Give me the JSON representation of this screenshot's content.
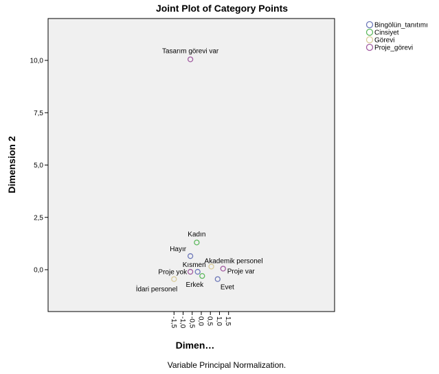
{
  "chart_data": {
    "type": "scatter",
    "title": "Joint Plot of Category Points",
    "xlabel": "Dimen…",
    "ylabel": "Dimension 2",
    "footnote": "Variable Principal Normalization.",
    "xlim": [
      -1.7,
      1.7
    ],
    "ylim": [
      -1.0,
      12.0
    ],
    "x_ticks": [
      "-1,5",
      "-1,0",
      "-0,5",
      "0,0",
      "0,5",
      "1,0",
      "1,5"
    ],
    "x_tick_values": [
      -1.5,
      -1.0,
      -0.5,
      0.0,
      0.5,
      1.0,
      1.5
    ],
    "y_ticks": [
      "0,0",
      "2,5",
      "5,0",
      "7,5",
      "10,0"
    ],
    "y_tick_values": [
      0.0,
      2.5,
      5.0,
      7.5,
      10.0
    ],
    "grid": false,
    "legend_position": "top-right",
    "series": [
      {
        "name": "Bingölün_tanıtımı",
        "color": "#6b77b8",
        "points": [
          {
            "label": "Hayır",
            "x": -0.6,
            "y": 0.65
          },
          {
            "label": "Kısmen",
            "x": -0.2,
            "y": -0.1
          },
          {
            "label": "Evet",
            "x": 0.9,
            "y": -0.45
          }
        ]
      },
      {
        "name": "Cinsiyet",
        "color": "#5cb85c",
        "points": [
          {
            "label": "Kadın",
            "x": -0.25,
            "y": 1.3
          },
          {
            "label": "Erkek",
            "x": 0.05,
            "y": -0.3
          }
        ]
      },
      {
        "name": "Görevi",
        "color": "#d8cc9a",
        "points": [
          {
            "label": "Akademik personel",
            "x": 0.55,
            "y": 0.15
          },
          {
            "label": "İdari personel",
            "x": -1.5,
            "y": -0.45
          }
        ]
      },
      {
        "name": "Proje_görevi",
        "color": "#a05aa0",
        "points": [
          {
            "label": "Tasarım görevi var",
            "x": -0.6,
            "y": 10.05
          },
          {
            "label": "Proje var",
            "x": 1.2,
            "y": 0.05
          },
          {
            "label": "Proje yok",
            "x": -0.6,
            "y": -0.1
          }
        ]
      }
    ]
  }
}
